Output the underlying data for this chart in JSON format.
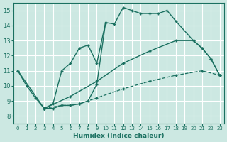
{
  "xlabel": "Humidex (Indice chaleur)",
  "xlim": [
    -0.5,
    23.5
  ],
  "ylim": [
    7.5,
    15.5
  ],
  "xticks": [
    0,
    1,
    2,
    3,
    4,
    5,
    6,
    7,
    8,
    9,
    10,
    11,
    12,
    13,
    14,
    15,
    16,
    17,
    18,
    19,
    20,
    21,
    22,
    23
  ],
  "yticks": [
    8,
    9,
    10,
    11,
    12,
    13,
    14,
    15
  ],
  "bg_color": "#cce8e2",
  "line_color": "#1a7060",
  "grid_color": "#ffffff",
  "line_a_x": [
    0,
    1,
    2,
    3,
    4,
    5,
    6,
    7,
    8,
    9,
    10,
    11,
    12,
    13,
    14,
    15,
    16,
    17,
    18,
    20,
    21,
    22,
    23
  ],
  "line_a_y": [
    11.0,
    10.0,
    9.2,
    8.5,
    8.5,
    8.7,
    8.7,
    8.8,
    9.0,
    10.1,
    14.2,
    14.1,
    15.2,
    15.0,
    14.8,
    14.8,
    14.8,
    15.0,
    14.3,
    13.0,
    12.5,
    11.8,
    10.7
  ],
  "line_b_x": [
    3,
    4,
    5,
    6,
    7,
    8,
    9,
    10
  ],
  "line_b_y": [
    8.5,
    8.8,
    11.0,
    11.5,
    12.5,
    12.7,
    11.5,
    14.2
  ],
  "line_c_x": [
    0,
    3,
    6,
    9,
    12,
    15,
    18,
    20,
    21,
    22,
    23
  ],
  "line_c_y": [
    11.0,
    8.5,
    9.3,
    10.3,
    11.5,
    12.3,
    13.0,
    13.0,
    12.5,
    11.8,
    10.7
  ],
  "line_d_x": [
    3,
    5,
    6,
    7,
    9,
    12,
    15,
    18,
    21,
    23
  ],
  "line_d_y": [
    8.5,
    8.7,
    8.7,
    8.8,
    9.2,
    9.8,
    10.3,
    10.7,
    11.0,
    10.7
  ]
}
